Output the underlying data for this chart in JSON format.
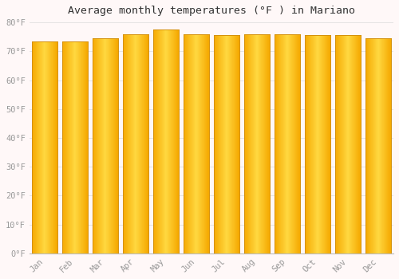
{
  "title": "Average monthly temperatures (°F ) in Mariano",
  "months": [
    "Jan",
    "Feb",
    "Mar",
    "Apr",
    "May",
    "Jun",
    "Jul",
    "Aug",
    "Sep",
    "Oct",
    "Nov",
    "Dec"
  ],
  "values": [
    73.5,
    73.5,
    74.5,
    76.0,
    77.5,
    76.0,
    75.5,
    76.0,
    76.0,
    75.5,
    75.5,
    74.5
  ],
  "ylim": [
    0,
    80
  ],
  "ytick_step": 10,
  "bar_color_left": "#F5A800",
  "bar_color_center": "#FFD840",
  "bar_color_right": "#F5A800",
  "bar_edge_color": "#D4900A",
  "background_color": "#FFF8F8",
  "plot_bg_color": "#FFF8F8",
  "grid_color": "#E0E0E0",
  "tick_label_color": "#999999",
  "title_color": "#333333",
  "bar_width": 0.85,
  "n_grad": 60
}
